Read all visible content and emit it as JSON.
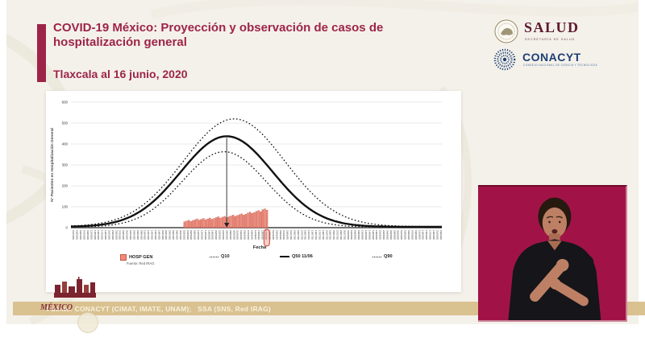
{
  "slide": {
    "title": "COVID-19 México: Proyección y observación de casos de hospitalización general",
    "subtitle": "Tlaxcala al 16 junio, 2020"
  },
  "logos": {
    "salud": {
      "word": "SALUD",
      "sub": "SECRETARÍA DE SALUD"
    },
    "conacyt": {
      "word": "CONACYT",
      "sub": "CONSEJO NACIONAL DE CIENCIA Y TECNOLOGÍA"
    }
  },
  "colors": {
    "guinda": "#9d2449",
    "interpreter_bg": "#a11347",
    "footer_tan": "#d9c190",
    "bar_fill": "#ef8b7b",
    "bar_edge": "#c9584a",
    "line": "#111111"
  },
  "chart_data": {
    "type": "line+bar",
    "title": "",
    "ylabel": "N° Pacientes en Hospitalización General",
    "xlabel": "Fecha",
    "ylim": [
      0,
      600
    ],
    "yticks": [
      0,
      100,
      200,
      300,
      400,
      500,
      600
    ],
    "x_ticks": {
      "start_date": "2020-03-01",
      "step_days": 2,
      "count": 104,
      "format": "dd/mm/yy",
      "note": "dense rotated date labels, illegible at full scale"
    },
    "series": [
      {
        "name": "Q90",
        "style": "dotted",
        "peak": 515,
        "mu_frac": 0.44,
        "sigma_frac": 0.137,
        "base": 5
      },
      {
        "name": "Q10",
        "style": "dotted",
        "peak": 360,
        "mu_frac": 0.413,
        "sigma_frac": 0.113,
        "base": 3
      },
      {
        "name": "Q50 11/06",
        "style": "solid",
        "peak": 433,
        "mu_frac": 0.42,
        "sigma_frac": 0.124,
        "base": 4
      }
    ],
    "bars": {
      "name": "HOSP GEN",
      "source": "Fuente: Red IRAG",
      "start_frac": 0.304,
      "end_frac": 0.532,
      "values": [
        28,
        32,
        35,
        30,
        34,
        38,
        42,
        36,
        40,
        44,
        38,
        42,
        46,
        40,
        44,
        48,
        52,
        46,
        50,
        54,
        48,
        52,
        56,
        60,
        54,
        58,
        62,
        66,
        60,
        64,
        70,
        74,
        68,
        72,
        78,
        82,
        76,
        86,
        90,
        84
      ]
    },
    "peak_annotation": {
      "x_frac": 0.42,
      "marker": "arrow-down"
    },
    "highlight_tick": {
      "x_frac": 0.528
    },
    "legend_position": "bottom"
  },
  "legend": {
    "hosp_gen": "HOSP GEN",
    "hosp_src": "Fuente: Red IRAG",
    "q10": "Q10",
    "q50": "Q50 11/06",
    "q90": "Q90"
  },
  "footer": {
    "source_text": "Fuente: CONACYT (CIMAT, IMATE, UNAM);   SSA (SNS, Red IRAG)",
    "overlay_fragment": "MÉXICO"
  },
  "interpreter": {
    "description": "sign language interpreter video inset"
  }
}
